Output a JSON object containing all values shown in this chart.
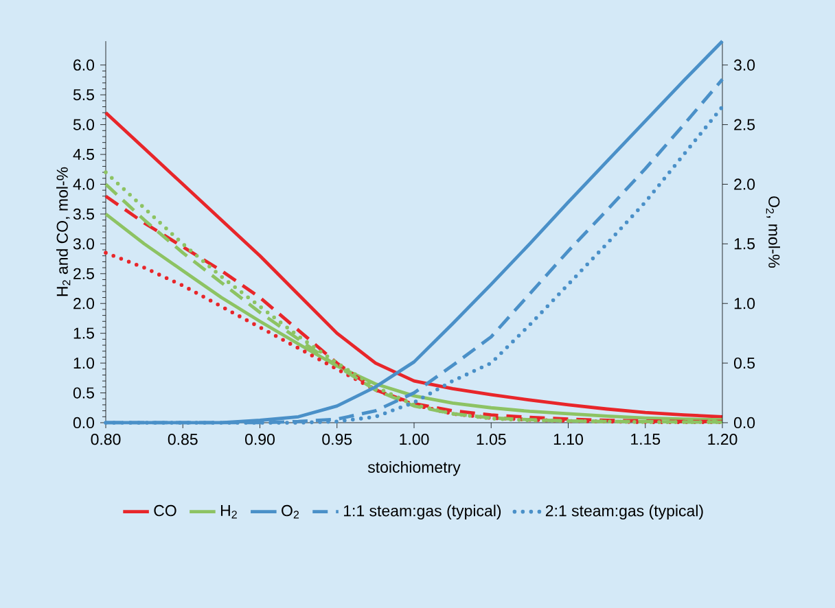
{
  "chart_data": {
    "type": "line",
    "xlabel": "stoichiometry",
    "ylabel": "H$_{2}$ and CO, mol-%",
    "y2label": "O$_{2}$, mol-%",
    "x": [
      0.8,
      0.825,
      0.85,
      0.875,
      0.9,
      0.925,
      0.95,
      0.975,
      1.0,
      1.025,
      1.05,
      1.075,
      1.1,
      1.125,
      1.15,
      1.175,
      1.2
    ],
    "series": [
      {
        "name": "CO",
        "color": "#e8262a",
        "line_style": "solid",
        "values": [
          5.2,
          4.6,
          4.0,
          3.4,
          2.8,
          2.15,
          1.5,
          1.0,
          0.7,
          0.57,
          0.47,
          0.38,
          0.3,
          0.23,
          0.17,
          0.13,
          0.1
        ]
      },
      {
        "name": "H$_{2}$",
        "color": "#8dc363",
        "line_style": "solid",
        "values": [
          3.5,
          3.0,
          2.55,
          2.1,
          1.7,
          1.32,
          0.95,
          0.65,
          0.45,
          0.33,
          0.25,
          0.19,
          0.15,
          0.11,
          0.08,
          0.06,
          0.05
        ]
      },
      {
        "name": "O$_{2}$",
        "color": "#4a90c8",
        "line_style": "solid",
        "axis": "y2",
        "values": [
          0,
          0,
          0,
          0,
          0.02,
          0.05,
          0.14,
          0.3,
          0.51,
          0.83,
          1.16,
          1.5,
          1.85,
          2.19,
          2.53,
          2.87,
          3.2
        ]
      },
      {
        "name": "1:1 steam:gas (typical)",
        "color": "#4a90c8",
        "line_style": "dashed",
        "axis": "y2",
        "values": [
          0,
          0,
          0,
          0,
          0,
          0.01,
          0.03,
          0.1,
          0.25,
          0.48,
          0.72,
          1.08,
          1.44,
          1.78,
          2.13,
          2.5,
          2.88
        ]
      },
      {
        "name": "2:1 steam:gas (typical)",
        "color": "#4a90c8",
        "line_style": "dotted",
        "axis": "y2",
        "values": [
          0,
          0,
          0,
          0,
          0,
          0,
          0.01,
          0.05,
          0.17,
          0.35,
          0.5,
          0.82,
          1.16,
          1.5,
          1.85,
          2.25,
          2.65
        ]
      },
      {
        "color": "#e8262a",
        "line_style": "dashed",
        "values": [
          3.8,
          3.35,
          2.95,
          2.55,
          2.1,
          1.55,
          1.0,
          0.55,
          0.32,
          0.2,
          0.13,
          0.09,
          0.06,
          0.04,
          0.03,
          0.02,
          0.02
        ]
      },
      {
        "color": "#e8262a",
        "line_style": "dotted",
        "values": [
          2.85,
          2.6,
          2.3,
          1.95,
          1.6,
          1.25,
          0.9,
          0.55,
          0.3,
          0.15,
          0.08,
          0.05,
          0.03,
          0.02,
          0.01,
          0.01,
          0.01
        ]
      },
      {
        "color": "#8dc363",
        "line_style": "dashed",
        "values": [
          4.0,
          3.4,
          2.85,
          2.35,
          1.85,
          1.4,
          0.95,
          0.55,
          0.28,
          0.15,
          0.08,
          0.05,
          0.03,
          0.02,
          0.02,
          0.01,
          0.01
        ]
      },
      {
        "color": "#8dc363",
        "line_style": "dotted",
        "values": [
          4.2,
          3.6,
          3.0,
          2.45,
          1.95,
          1.45,
          1.0,
          0.6,
          0.3,
          0.15,
          0.07,
          0.04,
          0.03,
          0.02,
          0.01,
          0.01,
          0.01
        ]
      }
    ],
    "xlim": [
      0.8,
      1.2
    ],
    "xticks": [
      {
        "value": 0.8,
        "label": "0.80"
      },
      {
        "value": 0.85,
        "label": "0.85"
      },
      {
        "value": 0.9,
        "label": "0.90"
      },
      {
        "value": 0.95,
        "label": "0.95"
      },
      {
        "value": 1.0,
        "label": "1.00"
      },
      {
        "value": 1.05,
        "label": "1.05"
      },
      {
        "value": 1.1,
        "label": "1.10"
      },
      {
        "value": 1.15,
        "label": "1.15"
      },
      {
        "value": 1.2,
        "label": "1.20"
      }
    ],
    "ylim": [
      0,
      6.4
    ],
    "yticks": [
      {
        "value": 0,
        "label": "0.0"
      },
      {
        "value": 0.5,
        "label": "0.5"
      },
      {
        "value": 1,
        "label": "1.0"
      },
      {
        "value": 1.5,
        "label": "1.5"
      },
      {
        "value": 2,
        "label": "2.0"
      },
      {
        "value": 2.5,
        "label": "2.5"
      },
      {
        "value": 3,
        "label": "3.0"
      },
      {
        "value": 3.5,
        "label": "3.5"
      },
      {
        "value": 4,
        "label": "4.0"
      },
      {
        "value": 4.5,
        "label": "4.5"
      },
      {
        "value": 5,
        "label": "5.0"
      },
      {
        "value": 5.5,
        "label": "5.5"
      },
      {
        "value": 6,
        "label": "6.0"
      }
    ],
    "y2lim": [
      0,
      3.2
    ],
    "y2ticks": [
      {
        "value": 0,
        "label": "0.0"
      },
      {
        "value": 0.5,
        "label": "0.5"
      },
      {
        "value": 1,
        "label": "1.0"
      },
      {
        "value": 1.5,
        "label": "1.5"
      },
      {
        "value": 2,
        "label": "2.0"
      },
      {
        "value": 2.5,
        "label": "2.5"
      },
      {
        "value": 3,
        "label": "3.0"
      }
    ],
    "legend": "bottom"
  }
}
